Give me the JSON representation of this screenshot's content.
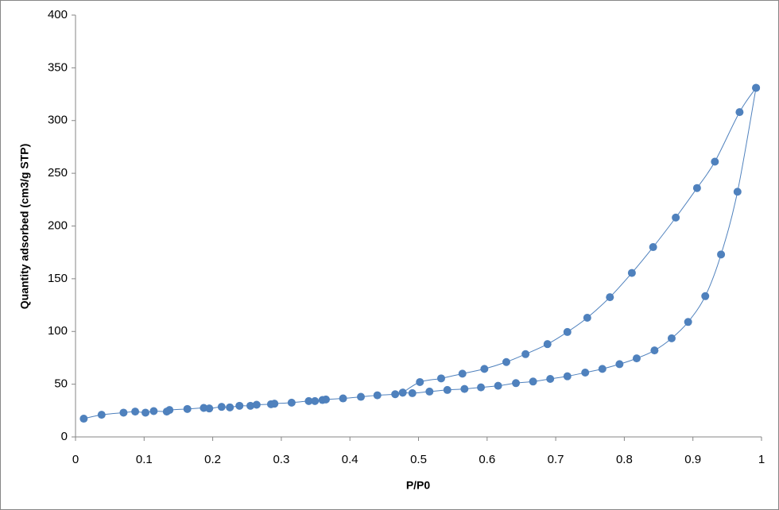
{
  "chart_data": {
    "type": "scatter",
    "x_label": "P/P0",
    "y_label": "Quantity adsorbed (cm3/g STP)",
    "xlim": [
      0,
      1
    ],
    "xticks": [
      0,
      0.1,
      0.2,
      0.3,
      0.4,
      0.5,
      0.6,
      0.7,
      0.8,
      0.9,
      1
    ],
    "ylim": [
      0,
      400
    ],
    "yticks": [
      0,
      50,
      100,
      150,
      200,
      250,
      300,
      350,
      400
    ],
    "grid": false,
    "smooth_lines": true,
    "series": [
      {
        "color": "#4f81bd",
        "x": [
          0.012,
          0.038,
          0.07,
          0.087,
          0.102,
          0.114,
          0.133,
          0.137,
          0.163,
          0.187,
          0.195,
          0.213,
          0.225,
          0.239,
          0.255,
          0.264,
          0.285,
          0.29,
          0.315,
          0.34,
          0.349,
          0.36,
          0.365,
          0.39,
          0.416,
          0.44,
          0.466,
          0.477,
          0.491,
          0.516,
          0.542,
          0.567,
          0.591,
          0.616,
          0.642,
          0.667,
          0.692,
          0.717,
          0.743,
          0.768,
          0.793,
          0.818,
          0.844,
          0.869,
          0.893,
          0.918,
          0.941,
          0.965,
          0.992
        ],
        "values": [
          17.3,
          21,
          23,
          24,
          23,
          24.5,
          24,
          25.5,
          26.5,
          27.5,
          27,
          28.5,
          28,
          29.5,
          29.5,
          30.5,
          31,
          31.5,
          32.5,
          34,
          34,
          35,
          35.5,
          36.5,
          38,
          39.5,
          40.5,
          42,
          41.5,
          43,
          44.5,
          45.5,
          47,
          48.5,
          51,
          52.5,
          55,
          57.5,
          61,
          64.5,
          69,
          74.5,
          82,
          93.5,
          109,
          133.5,
          173,
          232.5,
          331
        ]
      },
      {
        "color": "#4f81bd",
        "x": [
          0.992,
          0.968,
          0.932,
          0.906,
          0.875,
          0.842,
          0.811,
          0.779,
          0.746,
          0.717,
          0.688,
          0.656,
          0.628,
          0.596,
          0.564,
          0.533,
          0.502,
          0.477
        ],
        "values": [
          331,
          308,
          261,
          236,
          208,
          180,
          155.5,
          132.5,
          113,
          99.5,
          88,
          78.5,
          71,
          64.5,
          60,
          55.5,
          52,
          42
        ]
      }
    ]
  }
}
